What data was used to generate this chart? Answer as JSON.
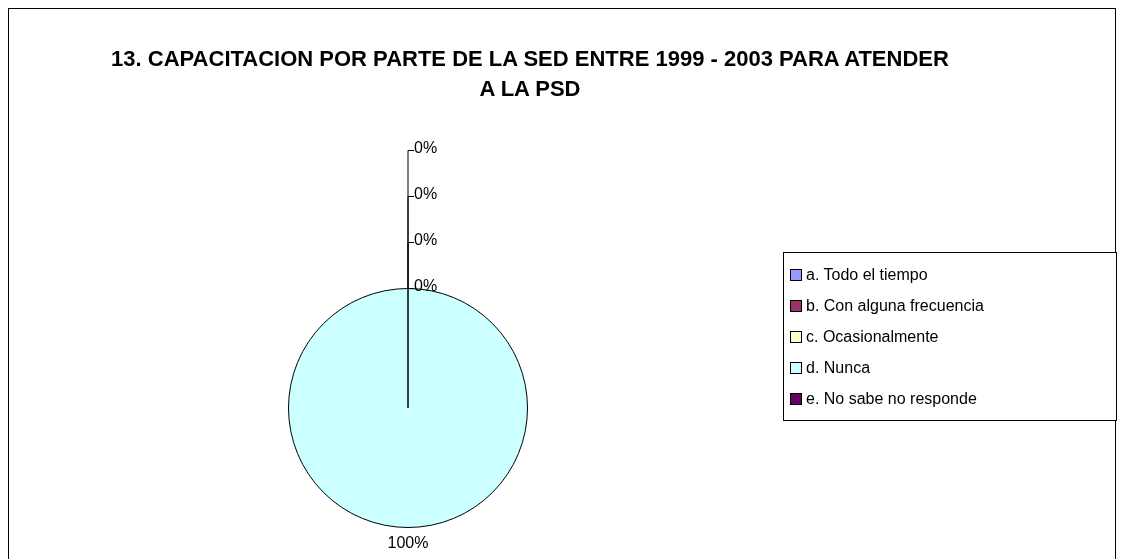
{
  "chart_data": {
    "type": "pie",
    "title": "13. CAPACITACION POR PARTE DE LA SED ENTRE 1999 - 2003 PARA ATENDER A LA PSD",
    "categories": [
      "a. Todo el tiempo",
      "b. Con alguna frecuencia",
      "c. Ocasionalmente",
      "d. Nunca",
      "e. No sabe no responde"
    ],
    "values": [
      0,
      0,
      0,
      100,
      0
    ],
    "colors": [
      "#9999ff",
      "#993366",
      "#ffffcc",
      "#ccffff",
      "#660066"
    ],
    "value_labels": [
      "0%",
      "0%",
      "0%",
      "100%",
      "0%"
    ],
    "legend": "right"
  }
}
